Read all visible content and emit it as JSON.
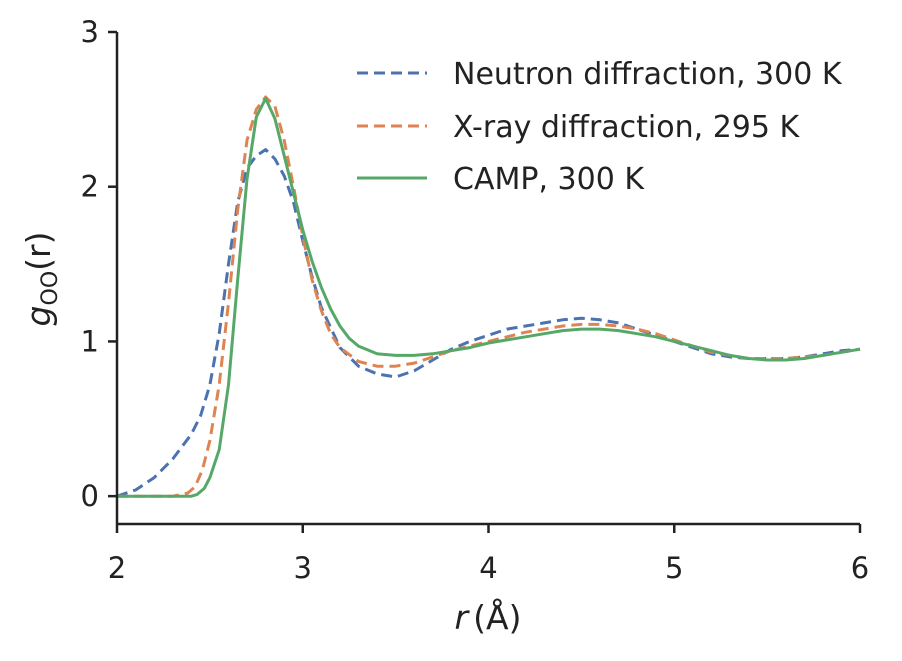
{
  "chart_data": {
    "type": "line",
    "title": "",
    "xlabel": {
      "var": "r",
      "unit": "(Å)"
    },
    "ylabel": {
      "main": "g",
      "sub": "OO",
      "arg": "(r)"
    },
    "xlim": [
      2,
      6
    ],
    "ylim": [
      -0.18,
      3
    ],
    "xticks": [
      2,
      3,
      4,
      5,
      6
    ],
    "yticks": [
      0,
      1,
      2,
      3
    ],
    "grid": false,
    "legend_position": "top-right",
    "series": [
      {
        "name": "Neutron diffraction, 300 K",
        "color": "#4c72b0",
        "dash": "dashed",
        "x": [
          2.0,
          2.1,
          2.2,
          2.3,
          2.4,
          2.45,
          2.5,
          2.55,
          2.6,
          2.65,
          2.7,
          2.75,
          2.8,
          2.85,
          2.9,
          2.95,
          3.0,
          3.05,
          3.1,
          3.2,
          3.3,
          3.4,
          3.5,
          3.6,
          3.7,
          3.8,
          3.9,
          4.0,
          4.1,
          4.2,
          4.3,
          4.4,
          4.5,
          4.6,
          4.7,
          4.8,
          4.9,
          5.0,
          5.1,
          5.2,
          5.3,
          5.4,
          5.5,
          5.6,
          5.7,
          5.8,
          5.9,
          6.0
        ],
        "y": [
          0.0,
          0.04,
          0.12,
          0.24,
          0.4,
          0.52,
          0.72,
          1.05,
          1.5,
          1.9,
          2.12,
          2.2,
          2.24,
          2.18,
          2.07,
          1.9,
          1.65,
          1.42,
          1.22,
          0.96,
          0.84,
          0.79,
          0.77,
          0.81,
          0.88,
          0.95,
          1.0,
          1.04,
          1.08,
          1.1,
          1.12,
          1.14,
          1.15,
          1.14,
          1.12,
          1.08,
          1.04,
          1.0,
          0.96,
          0.92,
          0.9,
          0.89,
          0.89,
          0.89,
          0.9,
          0.92,
          0.94,
          0.95
        ]
      },
      {
        "name": "X-ray diffraction, 295 K",
        "color": "#dd8452",
        "dash": "dashed",
        "x": [
          2.0,
          2.1,
          2.2,
          2.3,
          2.38,
          2.42,
          2.46,
          2.5,
          2.55,
          2.6,
          2.65,
          2.7,
          2.75,
          2.8,
          2.85,
          2.9,
          2.95,
          3.0,
          3.05,
          3.1,
          3.15,
          3.2,
          3.3,
          3.4,
          3.5,
          3.6,
          3.7,
          3.8,
          3.9,
          4.0,
          4.1,
          4.2,
          4.3,
          4.4,
          4.5,
          4.6,
          4.7,
          4.8,
          4.9,
          5.0,
          5.1,
          5.2,
          5.3,
          5.4,
          5.5,
          5.6,
          5.7,
          5.8,
          5.9,
          6.0
        ],
        "y": [
          0.0,
          0.0,
          0.0,
          0.0,
          0.02,
          0.06,
          0.17,
          0.36,
          0.72,
          1.25,
          1.85,
          2.3,
          2.5,
          2.58,
          2.52,
          2.3,
          2.0,
          1.68,
          1.4,
          1.2,
          1.05,
          0.96,
          0.87,
          0.84,
          0.84,
          0.86,
          0.9,
          0.94,
          0.97,
          1.0,
          1.03,
          1.06,
          1.08,
          1.1,
          1.11,
          1.11,
          1.1,
          1.08,
          1.05,
          1.01,
          0.97,
          0.93,
          0.91,
          0.89,
          0.89,
          0.89,
          0.9,
          0.91,
          0.93,
          0.95
        ]
      },
      {
        "name": "CAMP, 300 K",
        "color": "#55a868",
        "dash": "solid",
        "x": [
          2.0,
          2.1,
          2.2,
          2.3,
          2.4,
          2.43,
          2.47,
          2.5,
          2.55,
          2.6,
          2.65,
          2.7,
          2.75,
          2.8,
          2.85,
          2.9,
          2.95,
          3.0,
          3.05,
          3.1,
          3.15,
          3.2,
          3.25,
          3.3,
          3.4,
          3.5,
          3.6,
          3.7,
          3.8,
          3.9,
          4.0,
          4.1,
          4.2,
          4.3,
          4.4,
          4.5,
          4.6,
          4.7,
          4.8,
          4.9,
          5.0,
          5.1,
          5.2,
          5.3,
          5.4,
          5.5,
          5.6,
          5.7,
          5.8,
          5.9,
          6.0
        ],
        "y": [
          0.0,
          0.0,
          0.0,
          0.0,
          0.0,
          0.01,
          0.05,
          0.12,
          0.3,
          0.72,
          1.4,
          2.05,
          2.45,
          2.57,
          2.44,
          2.2,
          1.96,
          1.72,
          1.52,
          1.35,
          1.21,
          1.1,
          1.02,
          0.97,
          0.92,
          0.91,
          0.91,
          0.92,
          0.94,
          0.96,
          0.99,
          1.01,
          1.03,
          1.05,
          1.07,
          1.08,
          1.08,
          1.07,
          1.05,
          1.03,
          1.0,
          0.97,
          0.94,
          0.91,
          0.89,
          0.88,
          0.88,
          0.89,
          0.91,
          0.93,
          0.95
        ]
      }
    ]
  }
}
